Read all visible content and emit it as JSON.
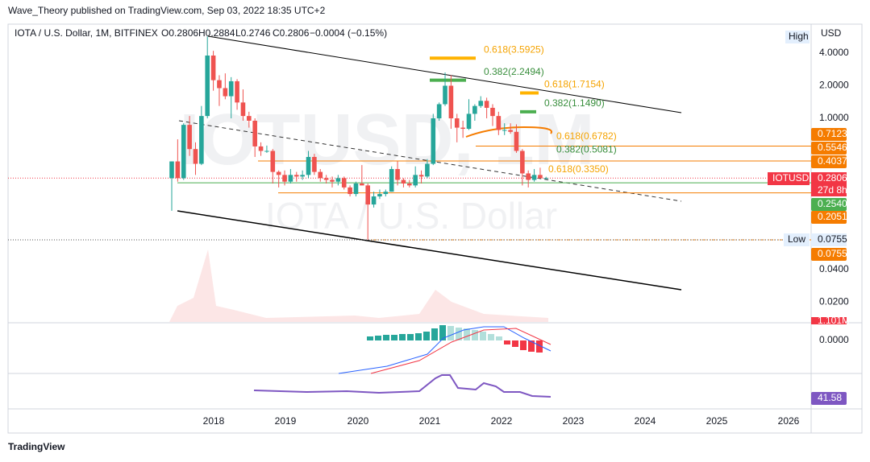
{
  "header": {
    "publisher": "Wave_Theory published on TradingView.com, Sep 03, 2022 18:35 UTC+2"
  },
  "legend": {
    "symbol": "IOTA / U.S. Dollar, 1M, BITFINEX",
    "open": "O0.2806",
    "high": "H0.2884",
    "low": "L0.2746",
    "close": "C0.2806",
    "change": "−0.0004 (−0.15%)"
  },
  "watermark": {
    "symbol": "IOTUSD, 1M",
    "name": "IOTA / U.S. Dollar"
  },
  "price_axis": {
    "unit": "USD",
    "ticks": [
      {
        "value": 4,
        "label": "4.0000"
      },
      {
        "value": 2,
        "label": "2.0000"
      },
      {
        "value": 1,
        "label": "1.0000"
      },
      {
        "value": 0.04,
        "label": "0.0400"
      },
      {
        "value": 0.02,
        "label": "0.0200"
      }
    ]
  },
  "price_tags": [
    {
      "value": 0.7123,
      "label": "0.7123"
    },
    {
      "value": 0.5546,
      "label": "0.5546"
    },
    {
      "value": 0.4037,
      "label": "0.4037"
    },
    {
      "value": 0.254,
      "label": "0.2540"
    },
    {
      "value": 0.2051,
      "label": "0.2051"
    },
    {
      "value": 0.0755,
      "label": "0.0755"
    }
  ],
  "last": {
    "ticker": "IOTUSD",
    "value": 0.2806,
    "label": "0.2806",
    "countdown": "27d 8h"
  },
  "high_label": "High",
  "low_label": "Low",
  "low_value": "0.0755",
  "fib_levels": [
    {
      "value": 3.5925,
      "label": "0.618(3.5925)"
    },
    {
      "value": 2.2494,
      "label": "0.382(2.2494)"
    },
    {
      "value": 1.7154,
      "label": "0.618(1.7154)"
    },
    {
      "value": 1.149,
      "label": "0.382(1.1490)"
    },
    {
      "value": 0.6782,
      "label": "0.618(0.6782)"
    },
    {
      "value": 0.5081,
      "label": "0.382(0.5081)"
    },
    {
      "value": 0.335,
      "label": "0.618(0.3350)"
    }
  ],
  "candles": [
    [
      0.28,
      0.4,
      0.14,
      0.4
    ],
    [
      0.4,
      0.64,
      0.26,
      0.28
    ],
    [
      0.28,
      0.9,
      0.27,
      0.87
    ],
    [
      0.87,
      1.05,
      0.45,
      0.52
    ],
    [
      0.52,
      0.6,
      0.3,
      0.38
    ],
    [
      0.38,
      1.3,
      0.37,
      1.05
    ],
    [
      1.05,
      5.69,
      1.0,
      3.8
    ],
    [
      3.8,
      4.2,
      1.8,
      2.25
    ],
    [
      2.25,
      2.5,
      1.3,
      1.9
    ],
    [
      1.9,
      2.6,
      1.5,
      1.6
    ],
    [
      1.6,
      2.4,
      1.0,
      2.2
    ],
    [
      2.2,
      2.3,
      1.2,
      1.4
    ],
    [
      1.4,
      1.85,
      0.95,
      1.05
    ],
    [
      1.05,
      1.15,
      0.82,
      0.95
    ],
    [
      0.95,
      1.0,
      0.44,
      0.55
    ],
    [
      0.55,
      0.6,
      0.45,
      0.5
    ],
    [
      0.5,
      0.56,
      0.48,
      0.5
    ],
    [
      0.5,
      0.52,
      0.25,
      0.32
    ],
    [
      0.32,
      0.33,
      0.23,
      0.3
    ],
    [
      0.3,
      0.33,
      0.24,
      0.26
    ],
    [
      0.26,
      0.34,
      0.25,
      0.3
    ],
    [
      0.3,
      0.32,
      0.26,
      0.29
    ],
    [
      0.29,
      0.33,
      0.27,
      0.3
    ],
    [
      0.3,
      0.5,
      0.28,
      0.44
    ],
    [
      0.44,
      0.47,
      0.3,
      0.32
    ],
    [
      0.32,
      0.34,
      0.26,
      0.28
    ],
    [
      0.28,
      0.3,
      0.25,
      0.27
    ],
    [
      0.27,
      0.29,
      0.23,
      0.26
    ],
    [
      0.26,
      0.3,
      0.24,
      0.28
    ],
    [
      0.28,
      0.29,
      0.22,
      0.23
    ],
    [
      0.23,
      0.24,
      0.19,
      0.2
    ],
    [
      0.2,
      0.26,
      0.19,
      0.25
    ],
    [
      0.25,
      0.37,
      0.24,
      0.24
    ],
    [
      0.24,
      0.25,
      0.0755,
      0.16
    ],
    [
      0.16,
      0.21,
      0.15,
      0.19
    ],
    [
      0.19,
      0.22,
      0.18,
      0.2
    ],
    [
      0.2,
      0.22,
      0.19,
      0.21
    ],
    [
      0.21,
      0.36,
      0.21,
      0.34
    ],
    [
      0.34,
      0.4,
      0.24,
      0.27
    ],
    [
      0.27,
      0.28,
      0.23,
      0.25
    ],
    [
      0.25,
      0.27,
      0.23,
      0.24
    ],
    [
      0.24,
      0.36,
      0.23,
      0.3
    ],
    [
      0.3,
      0.33,
      0.25,
      0.29
    ],
    [
      0.29,
      0.42,
      0.28,
      0.38
    ],
    [
      0.38,
      1.1,
      0.37,
      1.0
    ],
    [
      1.0,
      1.4,
      0.95,
      1.35
    ],
    [
      1.35,
      2.65,
      1.3,
      2.0
    ],
    [
      2.0,
      2.5,
      0.8,
      1.0
    ],
    [
      1.0,
      1.1,
      0.6,
      0.82
    ],
    [
      0.82,
      0.95,
      0.66,
      0.8
    ],
    [
      0.8,
      1.5,
      0.78,
      1.1
    ],
    [
      1.1,
      1.35,
      0.95,
      1.3
    ],
    [
      1.3,
      1.6,
      1.25,
      1.45
    ],
    [
      1.45,
      1.55,
      1.0,
      1.25
    ],
    [
      1.25,
      1.35,
      0.85,
      1.05
    ],
    [
      1.05,
      1.15,
      0.7,
      0.78
    ],
    [
      0.78,
      0.9,
      0.7,
      0.78
    ],
    [
      0.78,
      0.9,
      0.72,
      0.75
    ],
    [
      0.75,
      0.88,
      0.48,
      0.5
    ],
    [
      0.5,
      0.52,
      0.24,
      0.31
    ],
    [
      0.31,
      0.33,
      0.23,
      0.27
    ],
    [
      0.27,
      0.34,
      0.26,
      0.3
    ],
    [
      0.3,
      0.35,
      0.28,
      0.28
    ],
    [
      0.2806,
      0.2884,
      0.2746,
      0.2806
    ]
  ],
  "time_axis": [
    "2018",
    "2019",
    "2020",
    "2021",
    "2022",
    "2023",
    "2024",
    "2025",
    "2026"
  ],
  "volume_label": "1.101M",
  "macd_tick": "0.0000",
  "rsi_label": "41.58",
  "footer": "TradingView"
}
